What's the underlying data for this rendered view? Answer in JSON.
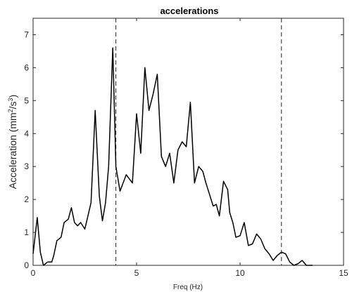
{
  "chart_data": {
    "type": "line",
    "title": "accelerations",
    "xlabel": "Freq (Hz)",
    "ylabel_prefix": "Acceleration (mm",
    "ylabel_sup1": "2",
    "ylabel_mid": "/s",
    "ylabel_sup2": "3",
    "ylabel_suffix": ")",
    "xlim": [
      0,
      15
    ],
    "ylim": [
      0,
      7.5
    ],
    "xticks": [
      0,
      5,
      10,
      15
    ],
    "yticks": [
      0,
      1,
      2,
      3,
      4,
      5,
      6,
      7
    ],
    "grid": false,
    "line_color": "#000000",
    "vlines": [
      4,
      12
    ],
    "series": [
      {
        "x": [
          0.0,
          0.2,
          0.35,
          0.5,
          0.7,
          0.9,
          1.0,
          1.15,
          1.35,
          1.5,
          1.7,
          1.85,
          2.0,
          2.15,
          2.3,
          2.5,
          2.65,
          2.8,
          3.0,
          3.2,
          3.35,
          3.5,
          3.65,
          3.85,
          4.0,
          4.2,
          4.5,
          4.8,
          5.0,
          5.2,
          5.4,
          5.6,
          5.8,
          6.0,
          6.2,
          6.4,
          6.6,
          6.8,
          7.0,
          7.2,
          7.4,
          7.6,
          7.8,
          8.0,
          8.2,
          8.35,
          8.5,
          8.7,
          8.85,
          9.0,
          9.2,
          9.4,
          9.5,
          9.65,
          9.8,
          10.0,
          10.2,
          10.4,
          10.6,
          10.8,
          11.0,
          11.2,
          11.4,
          11.6,
          11.8,
          12.0,
          12.2,
          12.4,
          12.6,
          12.8,
          13.0,
          13.2,
          13.35,
          13.5
        ],
        "y": [
          0.35,
          1.45,
          0.4,
          0.0,
          0.1,
          0.1,
          0.3,
          0.75,
          0.85,
          1.3,
          1.4,
          1.75,
          1.3,
          1.2,
          1.3,
          1.1,
          1.5,
          1.9,
          4.7,
          2.1,
          1.35,
          1.9,
          3.0,
          6.6,
          3.0,
          2.25,
          2.75,
          2.5,
          4.6,
          3.4,
          6.0,
          4.7,
          5.2,
          5.8,
          3.3,
          3.0,
          3.4,
          2.5,
          3.5,
          3.75,
          3.6,
          4.95,
          2.5,
          3.0,
          2.85,
          2.5,
          2.2,
          1.8,
          1.85,
          1.5,
          2.55,
          2.3,
          1.6,
          1.3,
          0.85,
          0.9,
          1.3,
          0.6,
          0.65,
          0.95,
          0.8,
          0.5,
          0.35,
          0.15,
          0.3,
          0.4,
          0.35,
          0.1,
          0.0,
          0.05,
          0.15,
          0.0,
          0.0,
          0.0
        ]
      }
    ]
  }
}
